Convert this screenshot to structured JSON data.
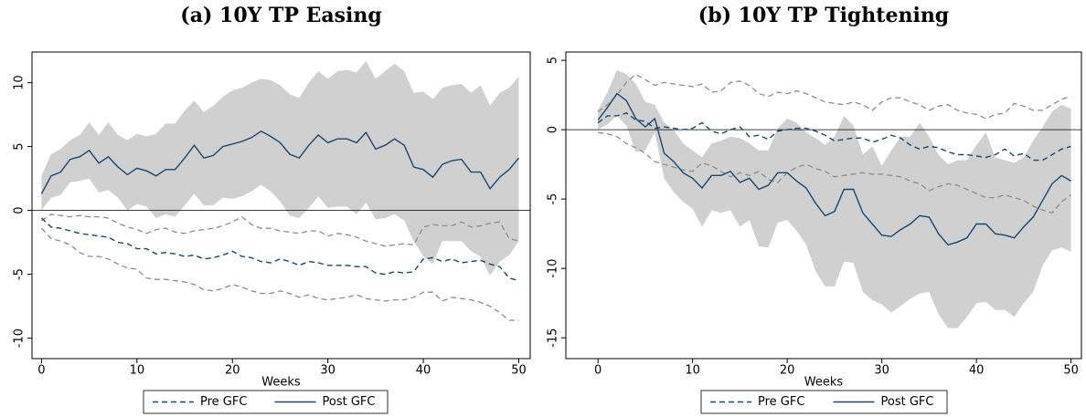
{
  "chart_data": [
    {
      "type": "line",
      "title": "(a) 10Y TP Easing",
      "x_label": "Weeks",
      "x": [
        0,
        1,
        2,
        3,
        4,
        5,
        6,
        7,
        8,
        9,
        10,
        11,
        12,
        13,
        14,
        15,
        16,
        17,
        18,
        19,
        20,
        21,
        22,
        23,
        24,
        25,
        26,
        27,
        28,
        29,
        30,
        31,
        32,
        33,
        34,
        35,
        36,
        37,
        38,
        39,
        40,
        41,
        42,
        43,
        44,
        45,
        46,
        47,
        48,
        49,
        50
      ],
      "xlim": [
        -1,
        51.2
      ],
      "xticks": [
        0,
        10,
        20,
        30,
        40,
        50
      ],
      "ylim": [
        -11.6,
        12.4
      ],
      "yticks": [
        -10,
        -5,
        0,
        5,
        10
      ],
      "hline": 0,
      "series": [
        {
          "name": "Pre GFC",
          "color": "#1a476f",
          "dash": true,
          "band": "lines",
          "band_color": "#8c8c8c",
          "values": [
            -0.6,
            -1.3,
            -1.4,
            -1.6,
            -1.8,
            -1.9,
            -2,
            -2.1,
            -2.5,
            -2.6,
            -3,
            -3,
            -3.4,
            -3.3,
            -3.4,
            -3.6,
            -3.5,
            -3.8,
            -3.7,
            -3.5,
            -3.2,
            -3.6,
            -3.7,
            -4,
            -4.1,
            -3.8,
            -4,
            -4.3,
            -4,
            -4.1,
            -4.3,
            -4.3,
            -4.3,
            -4.4,
            -4.4,
            -4.9,
            -5,
            -4.8,
            -4.9,
            -4.8,
            -3.8,
            -3.7,
            -4,
            -3.8,
            -4.1,
            -4,
            -3.9,
            -4.2,
            -4.4,
            -5.3,
            -5.5
          ],
          "upper": [
            -0.8,
            -0.3,
            -0.4,
            -0.5,
            -0.4,
            -0.5,
            -0.5,
            -0.6,
            -1,
            -1.3,
            -1.5,
            -1.8,
            -1.5,
            -1.4,
            -1.7,
            -1.8,
            -1.6,
            -1.5,
            -1.4,
            -1.2,
            -0.9,
            -0.5,
            -1.1,
            -1.4,
            -1.4,
            -1.6,
            -1.7,
            -1.8,
            -1.6,
            -1.6,
            -2,
            -1.8,
            -1.9,
            -2.1,
            -2.4,
            -2.6,
            -2.8,
            -2.7,
            -2.6,
            -2.7,
            -1.3,
            -1.1,
            -1.2,
            -1.2,
            -0.9,
            -1.3,
            -1.2,
            -1,
            -0.9,
            -2.2,
            -2.4
          ],
          "lower": [
            -1.4,
            -2.2,
            -2.4,
            -2.7,
            -3.3,
            -3.6,
            -3.6,
            -3.8,
            -4.2,
            -4.5,
            -4.6,
            -5.3,
            -5.4,
            -5.4,
            -5.5,
            -5.6,
            -5.8,
            -6.2,
            -6.3,
            -6.1,
            -5.8,
            -6,
            -6.3,
            -6.5,
            -6.5,
            -6.3,
            -6.5,
            -6.8,
            -6.6,
            -6.9,
            -7,
            -6.9,
            -6.8,
            -6.6,
            -6.9,
            -7,
            -7.1,
            -7,
            -7,
            -6.8,
            -6.4,
            -6.4,
            -7.1,
            -6.8,
            -6.9,
            -7,
            -7.2,
            -7.5,
            -8,
            -8.6,
            -8.6
          ]
        },
        {
          "name": "Post GFC",
          "color": "#1a476f",
          "dash": false,
          "band": "fill",
          "band_color": "#d0d0d0",
          "values": [
            1.3,
            2.7,
            3,
            4,
            4.2,
            4.7,
            3.7,
            4.2,
            3.4,
            2.8,
            3.3,
            3.1,
            2.7,
            3.2,
            3.2,
            4.1,
            5.1,
            4.1,
            4.3,
            5,
            5.2,
            5.4,
            5.7,
            6.2,
            5.8,
            5.3,
            4.4,
            4.1,
            5.1,
            5.9,
            5.3,
            5.6,
            5.6,
            5.3,
            6.1,
            4.8,
            5.1,
            5.6,
            5.1,
            3.4,
            3.2,
            2.6,
            3.6,
            3.9,
            4,
            3,
            3,
            1.7,
            2.6,
            3.2,
            4.1
          ],
          "upper": [
            2.7,
            4.4,
            4.8,
            5.5,
            5.9,
            6.9,
            5.9,
            6.9,
            5.9,
            5.5,
            6,
            5.8,
            6,
            6.8,
            6.8,
            7.8,
            8.6,
            7.7,
            8.2,
            8.9,
            9.4,
            9.6,
            10,
            10.3,
            10.2,
            9.8,
            9.1,
            8.8,
            10,
            10.9,
            10.3,
            10.9,
            11,
            10.8,
            11.7,
            10.3,
            10.9,
            11.5,
            10.9,
            9.2,
            9.3,
            8.7,
            9.6,
            9.8,
            9.9,
            9.2,
            9.8,
            8.2,
            9.2,
            9.6,
            10.5
          ],
          "lower": [
            0,
            1,
            1.2,
            2.2,
            2.3,
            2.5,
            1.4,
            1.6,
            1,
            0,
            0.5,
            0.3,
            -0.6,
            -0.3,
            -0.5,
            0.4,
            1.3,
            0.4,
            0.4,
            1,
            0.9,
            1.1,
            1.5,
            2,
            1.5,
            0.7,
            -0.4,
            -0.6,
            0.2,
            1.1,
            0.2,
            0.3,
            0.3,
            -0.3,
            0.6,
            -0.7,
            -0.6,
            -0.3,
            -0.8,
            -2.4,
            -3.6,
            -4.2,
            -2.4,
            -2.4,
            -2.4,
            -3.2,
            -3.6,
            -5.1,
            -4,
            -3.5,
            -2.4
          ]
        }
      ]
    },
    {
      "type": "line",
      "title": "(b) 10Y TP Tightening",
      "x_label": "Weeks",
      "x": [
        0,
        1,
        2,
        3,
        4,
        5,
        6,
        7,
        8,
        9,
        10,
        11,
        12,
        13,
        14,
        15,
        16,
        17,
        18,
        19,
        20,
        21,
        22,
        23,
        24,
        25,
        26,
        27,
        28,
        29,
        30,
        31,
        32,
        33,
        34,
        35,
        36,
        37,
        38,
        39,
        40,
        41,
        42,
        43,
        44,
        45,
        46,
        47,
        48,
        49,
        50
      ],
      "xlim": [
        -3.4,
        51.1
      ],
      "xticks": [
        0,
        10,
        20,
        30,
        40,
        50
      ],
      "ylim": [
        -16.5,
        5.6
      ],
      "yticks": [
        -15,
        -10,
        -5,
        0,
        5
      ],
      "hline": 0,
      "series": [
        {
          "name": "Pre GFC",
          "color": "#1a476f",
          "dash": true,
          "band": "lines",
          "band_color": "#8c8c8c",
          "values": [
            0.5,
            1,
            1,
            1.2,
            0.7,
            0.6,
            0.1,
            0.2,
            0.1,
            0,
            0.1,
            0.5,
            -0.1,
            -0.3,
            0,
            0.2,
            -0.5,
            -0.4,
            -0.7,
            -0.1,
            0,
            0.1,
            0.1,
            -0.1,
            -0.4,
            -0.8,
            -0.7,
            -0.6,
            -0.6,
            -0.9,
            -0.7,
            -0.4,
            -0.6,
            -1.1,
            -1.4,
            -1.2,
            -1.3,
            -1.6,
            -1.8,
            -1.8,
            -1.9,
            -2,
            -1.8,
            -1.4,
            -1.9,
            -1.7,
            -2.2,
            -2.2,
            -1.8,
            -1.4,
            -1.2
          ],
          "upper": [
            1.3,
            1.8,
            2.5,
            3.4,
            4,
            3.6,
            3.2,
            3.4,
            3.3,
            3.2,
            3.1,
            3.3,
            2.7,
            2.8,
            3.4,
            3.5,
            3.2,
            2.6,
            2.4,
            2.7,
            2.6,
            2.8,
            2.6,
            2.3,
            2,
            1.9,
            1.8,
            2,
            1.8,
            1.4,
            2,
            2.3,
            2.3,
            2,
            1.8,
            1.4,
            1.7,
            1.8,
            1.4,
            1.2,
            1.1,
            0.8,
            1.1,
            1.2,
            1.9,
            1.7,
            1.4,
            1.4,
            1.8,
            2.2,
            2.4
          ],
          "lower": [
            -0.2,
            -0.3,
            -0.5,
            -1,
            -1.3,
            -1.7,
            -2.3,
            -2.5,
            -2.7,
            -2.9,
            -3,
            -2.4,
            -2.6,
            -3,
            -3.4,
            -3.1,
            -3.3,
            -3,
            -3.6,
            -3.8,
            -3.1,
            -2.7,
            -2.5,
            -2.8,
            -3,
            -3.4,
            -3.3,
            -3.2,
            -3.1,
            -3.2,
            -3.2,
            -3.3,
            -3.4,
            -3.7,
            -3.9,
            -4.4,
            -4.1,
            -3.9,
            -4,
            -4.3,
            -4.6,
            -4.9,
            -4.9,
            -4.7,
            -4.9,
            -5.1,
            -5.5,
            -5.8,
            -6,
            -5.2,
            -4.7
          ]
        },
        {
          "name": "Post GFC",
          "color": "#1a476f",
          "dash": false,
          "band": "fill",
          "band_color": "#d0d0d0",
          "values": [
            0.7,
            1.6,
            2.6,
            2.1,
            0.8,
            0.2,
            0.8,
            -1.7,
            -2.3,
            -3.1,
            -3.5,
            -4.2,
            -3.3,
            -3.3,
            -3,
            -3.8,
            -3.5,
            -4.3,
            -4,
            -3.1,
            -3.1,
            -3.7,
            -4.2,
            -5.3,
            -6.2,
            -5.9,
            -4.3,
            -4.3,
            -6,
            -6.8,
            -7.6,
            -7.7,
            -7.2,
            -6.8,
            -6.2,
            -6.3,
            -7.5,
            -8.3,
            -8.1,
            -7.8,
            -6.8,
            -6.8,
            -7.5,
            -7.6,
            -7.8,
            -7,
            -6.3,
            -5.1,
            -3.9,
            -3.3,
            -3.7
          ],
          "upper": [
            1.4,
            2.7,
            4.3,
            4,
            3.3,
            2,
            1.8,
            0.5,
            0,
            -1,
            -1.5,
            -2,
            -1,
            -0.8,
            -0.5,
            -0.6,
            -1,
            -1.5,
            -1.5,
            0.1,
            0.8,
            0.5,
            -0.2,
            -0.6,
            -1.1,
            -0.5,
            1,
            0.3,
            -1.8,
            -1.2,
            -2.6,
            -1.5,
            -0.5,
            -0.5,
            0.5,
            -0.5,
            -1.8,
            -2.5,
            -2.2,
            -2.2,
            -1.1,
            -0.2,
            -2,
            -2.2,
            -2.4,
            -2,
            -0.8,
            0.2,
            1.3,
            1.8,
            1.5
          ],
          "lower": [
            0,
            0.4,
            1,
            0.3,
            -1.6,
            -1.5,
            -0.2,
            -3.5,
            -4.5,
            -5.2,
            -5.7,
            -7,
            -5.8,
            -6,
            -5.8,
            -7,
            -6.5,
            -8.4,
            -8.5,
            -6.7,
            -6.5,
            -7.3,
            -8.3,
            -10.2,
            -11.3,
            -11.3,
            -9.5,
            -9.6,
            -11.7,
            -12.3,
            -12.6,
            -13.2,
            -12.7,
            -12.2,
            -11.8,
            -11.7,
            -13.3,
            -14.3,
            -14.3,
            -13.5,
            -12.5,
            -12.4,
            -13,
            -13,
            -13.5,
            -12.5,
            -11.7,
            -9.8,
            -8.7,
            -8.5,
            -8.8
          ]
        }
      ]
    }
  ]
}
